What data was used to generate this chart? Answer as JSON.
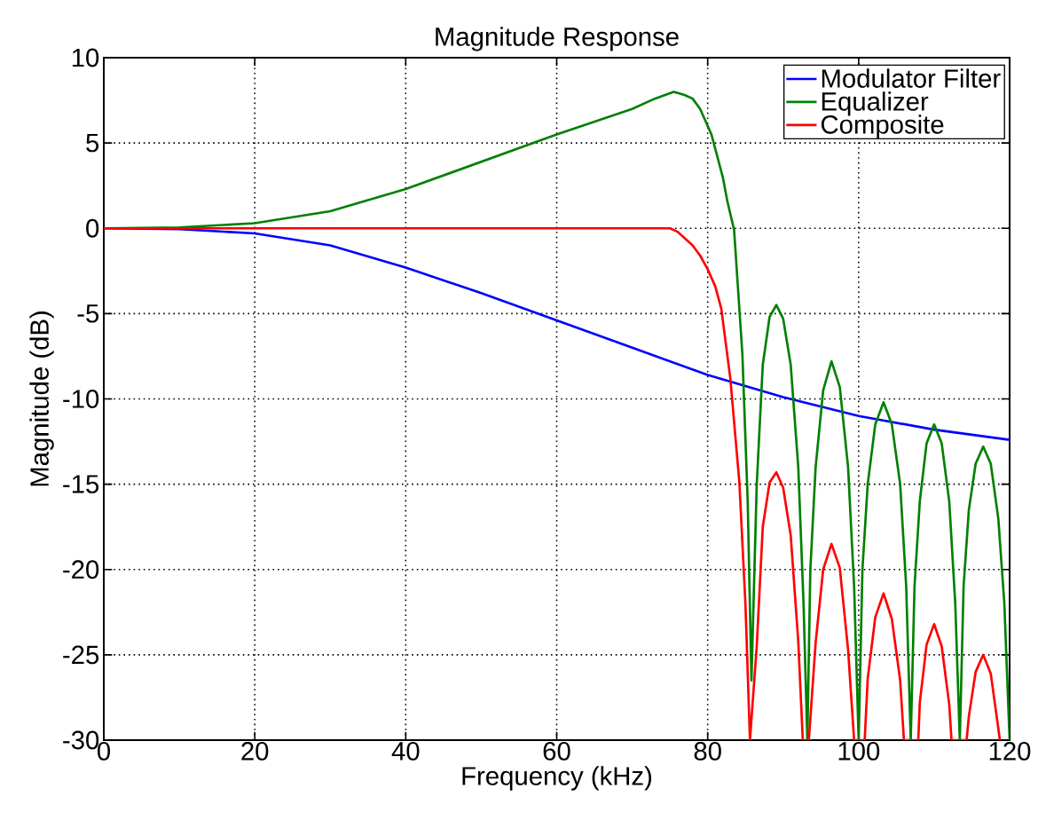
{
  "chart_data": {
    "type": "line",
    "title": "Magnitude Response",
    "xlabel": "Frequency (kHz)",
    "ylabel": "Magnitude (dB)",
    "xlim": [
      0,
      120
    ],
    "ylim": [
      -30,
      10
    ],
    "xticks": [
      0,
      20,
      40,
      60,
      80,
      100,
      120
    ],
    "yticks": [
      -30,
      -25,
      -20,
      -15,
      -10,
      -5,
      0,
      5,
      10
    ],
    "grid": true,
    "legend": "top right",
    "marker": "none",
    "line_style": "solid",
    "series": [
      {
        "name": "Modulator Filter",
        "color": "#0000ff",
        "x": [
          0,
          10,
          20,
          30,
          40,
          50,
          60,
          70,
          80,
          90,
          100,
          110,
          120
        ],
        "values": [
          0,
          -0.05,
          -0.3,
          -1.0,
          -2.3,
          -3.8,
          -5.4,
          -7.0,
          -8.6,
          -9.9,
          -11.0,
          -11.8,
          -12.4
        ]
      },
      {
        "name": "Equalizer",
        "color": "#008000",
        "x": [
          0,
          10,
          20,
          30,
          40,
          50,
          60,
          70,
          73,
          75.5,
          77,
          78,
          79,
          80.5,
          82,
          82.6,
          83.5,
          84.6,
          85.3,
          85.8,
          86.5,
          87.3,
          88.2,
          89.1,
          90.0,
          91.0,
          92.0,
          92.7,
          93.2,
          93.6,
          94.3,
          95.3,
          96.4,
          97.5,
          98.6,
          99.4,
          100.0,
          100.5,
          101.2,
          102.2,
          103.3,
          104.4,
          105.5,
          106.3,
          106.9,
          107.4,
          108.1,
          109.0,
          110.0,
          111.0,
          112.0,
          112.8,
          113.4,
          113.9,
          114.6,
          115.5,
          116.5,
          117.5,
          118.5,
          119.3,
          120
        ],
        "values": [
          0,
          0.05,
          0.3,
          1.0,
          2.3,
          3.9,
          5.5,
          7.0,
          7.6,
          8.0,
          7.8,
          7.6,
          7.0,
          5.5,
          3.0,
          1.6,
          -0.1,
          -7.4,
          -16,
          -26.5,
          -15,
          -8,
          -5.2,
          -4.5,
          -5.3,
          -8,
          -14,
          -22,
          -30,
          -20,
          -14,
          -9.5,
          -7.8,
          -9.3,
          -14,
          -21,
          -30,
          -20,
          -15,
          -11.5,
          -10.2,
          -11.5,
          -15,
          -21,
          -30,
          -21,
          -16,
          -12.6,
          -11.5,
          -12.6,
          -16,
          -22,
          -30,
          -21,
          -16.5,
          -13.8,
          -12.8,
          -13.8,
          -17,
          -22,
          -30
        ]
      },
      {
        "name": "Composite",
        "color": "#ff0000",
        "x": [
          0,
          75,
          76,
          77,
          78,
          79,
          80,
          81,
          81.8,
          83.0,
          84.2,
          85.0,
          85.6,
          86.5,
          87.3,
          88.2,
          89.1,
          90.0,
          91.0,
          92.0,
          92.6,
          93.4,
          94.3,
          95.3,
          96.4,
          97.5,
          98.6,
          99.4,
          100.8,
          101.2,
          102.2,
          103.3,
          104.4,
          105.5,
          106.0,
          107.9,
          108.1,
          109.0,
          110.0,
          111.0,
          112.0,
          112.3,
          114.3,
          114.6,
          115.5,
          116.5,
          117.5,
          118.5,
          118.7
        ],
        "values": [
          0,
          0,
          -0.2,
          -0.6,
          -1.0,
          -1.6,
          -2.4,
          -3.4,
          -4.7,
          -8.8,
          -14.9,
          -22,
          -30,
          -24.5,
          -17.5,
          -14.9,
          -14.3,
          -15.2,
          -18,
          -24.2,
          -30,
          -30,
          -24.3,
          -20,
          -18.5,
          -19.9,
          -24.7,
          -30,
          -30,
          -26.4,
          -22.8,
          -21.4,
          -22.9,
          -26.5,
          -30,
          -30,
          -27.8,
          -24.4,
          -23.2,
          -24.5,
          -27.9,
          -30,
          -30,
          -28.6,
          -26.0,
          -25.0,
          -26.1,
          -29.3,
          -30
        ]
      }
    ]
  }
}
